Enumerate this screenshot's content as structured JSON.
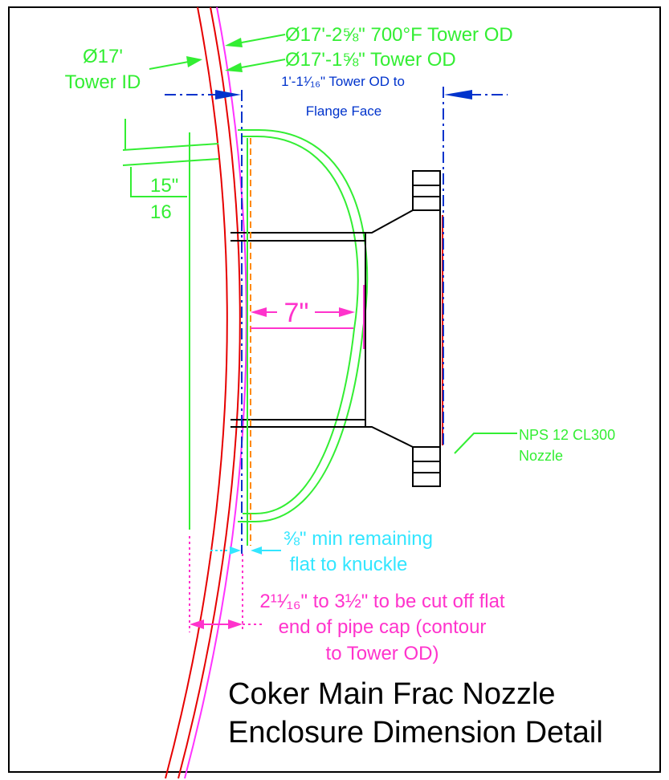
{
  "colors": {
    "tower": "#e60000",
    "tower_hot": "#ff33ff",
    "enclosure": "#33ee33",
    "flange": "#000000",
    "dim_blue": "#0033cc",
    "dim_cyan": "#33e6ff",
    "dim_magenta": "#ff33cc",
    "cut_orange": "#ff8800"
  },
  "labels": {
    "od_700f": "Ø17'-2⅝\" 700°F Tower OD",
    "od": "Ø17'-1⅝\" Tower OD",
    "id_line1": "Ø17'",
    "id_line2": "Tower ID",
    "od_to_flange_line1": "1'-1¹⁄₁₆\" Tower OD to",
    "od_to_flange_line2": "Flange Face",
    "fifteen_num": "15\"",
    "fifteen_den": "16",
    "seven": "7\"",
    "nozzle_line1": "NPS 12 CL300",
    "nozzle_line2": "Nozzle",
    "min_flat_line1": "⅜\" min remaining",
    "min_flat_line2": "flat to knuckle",
    "cut_line1": "2¹¹⁄₁₆\" to 3½\" to be cut off flat",
    "cut_line2": "end of pipe cap (contour",
    "cut_line3": "to Tower OD)",
    "title_line1": "Coker Main Frac Nozzle",
    "title_line2": "Enclosure Dimension Detail"
  }
}
